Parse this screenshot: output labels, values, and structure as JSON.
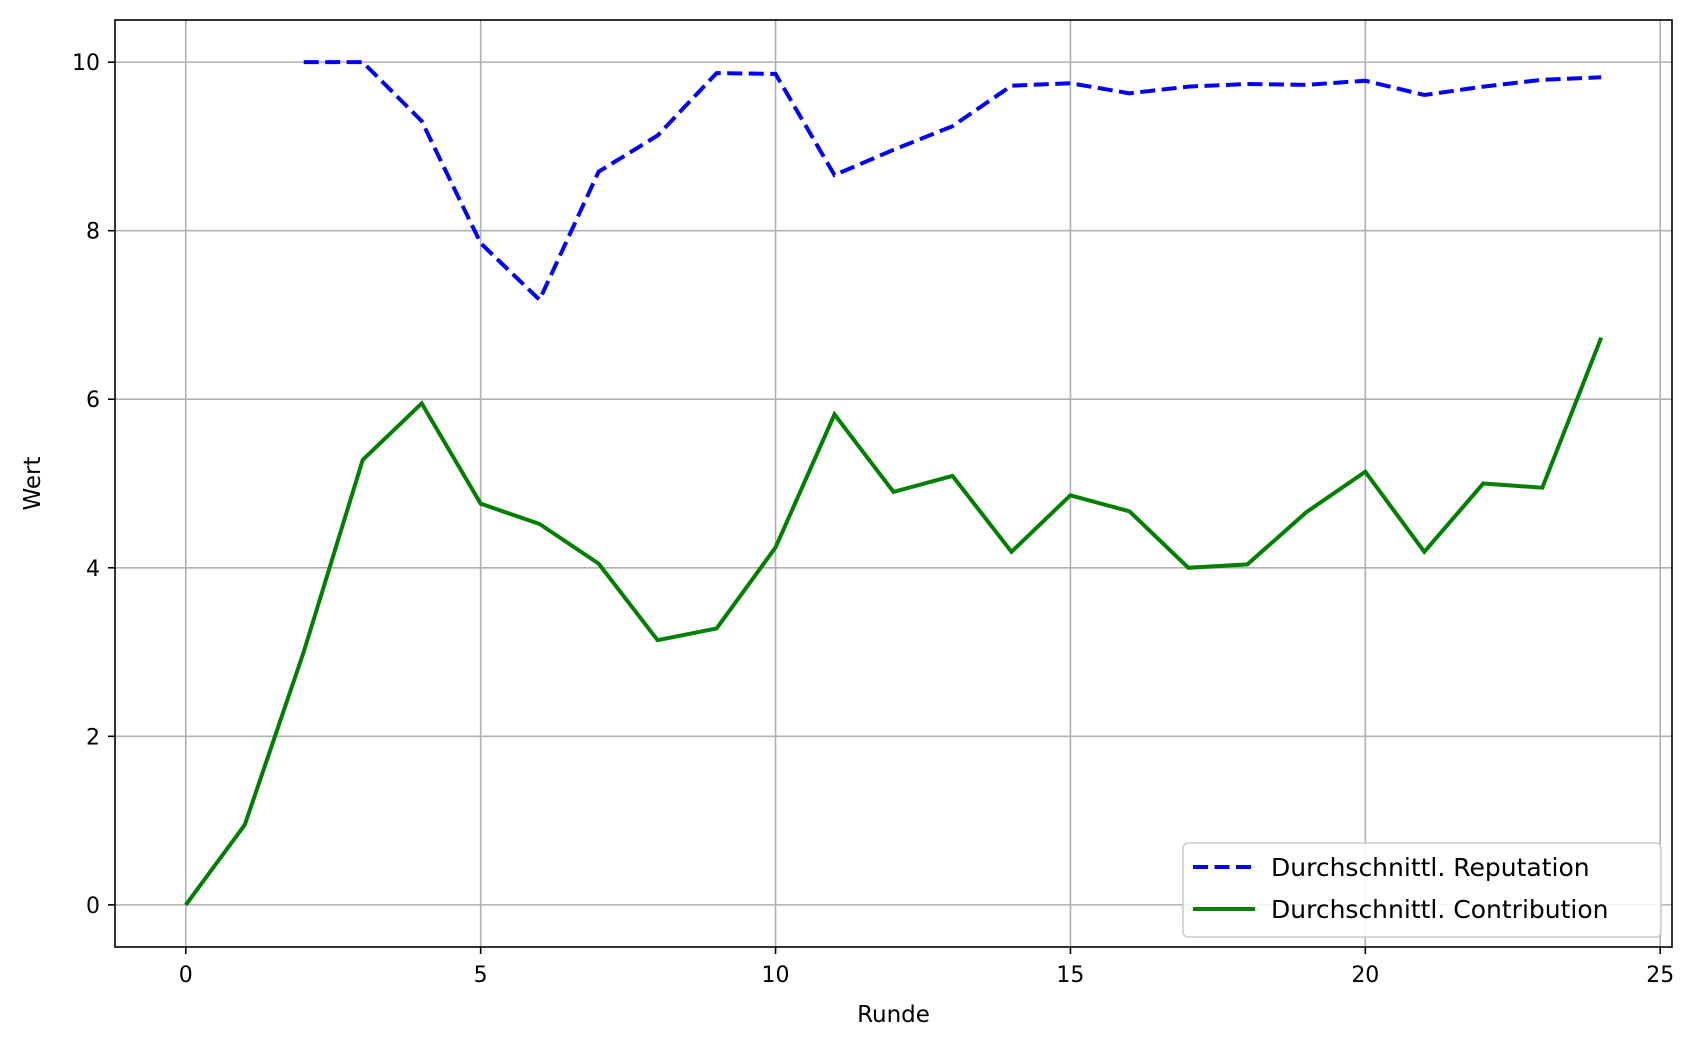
{
  "chart_data": {
    "type": "line",
    "title": "",
    "xlabel": "Runde",
    "ylabel": "Wert",
    "xlim": [
      -1.2,
      25.2
    ],
    "ylim": [
      -0.5,
      10.5
    ],
    "xticks": [
      0,
      5,
      10,
      15,
      20,
      25
    ],
    "yticks": [
      0,
      2,
      4,
      6,
      8,
      10
    ],
    "grid": true,
    "legend_position": "lower-right",
    "series": [
      {
        "name": "Durchschnittl. Reputation",
        "color": "#0000ff",
        "style": "dashed",
        "x": [
          2,
          3,
          4,
          5,
          6,
          7,
          8,
          9,
          10,
          11,
          12,
          13,
          14,
          15,
          16,
          17,
          18,
          19,
          20,
          21,
          22,
          23,
          24
        ],
        "y": [
          10.0,
          10.0,
          9.3,
          7.85,
          7.18,
          8.7,
          9.13,
          9.87,
          9.86,
          8.66,
          8.96,
          9.24,
          9.72,
          9.75,
          9.63,
          9.71,
          9.74,
          9.73,
          9.78,
          9.61,
          9.71,
          9.79,
          9.82
        ]
      },
      {
        "name": "Durchschnittl. Contribution",
        "color": "#008000",
        "style": "solid",
        "x": [
          0,
          1,
          2,
          3,
          4,
          5,
          6,
          7,
          8,
          9,
          10,
          11,
          12,
          13,
          14,
          15,
          16,
          17,
          18,
          19,
          20,
          21,
          22,
          23,
          24
        ],
        "y": [
          0.0,
          0.95,
          3.0,
          5.28,
          5.95,
          4.76,
          4.52,
          4.05,
          3.14,
          3.28,
          4.24,
          5.82,
          4.9,
          5.09,
          4.19,
          4.86,
          4.67,
          4.0,
          4.04,
          4.66,
          5.14,
          4.19,
          5.0,
          4.95,
          6.73
        ]
      }
    ]
  }
}
